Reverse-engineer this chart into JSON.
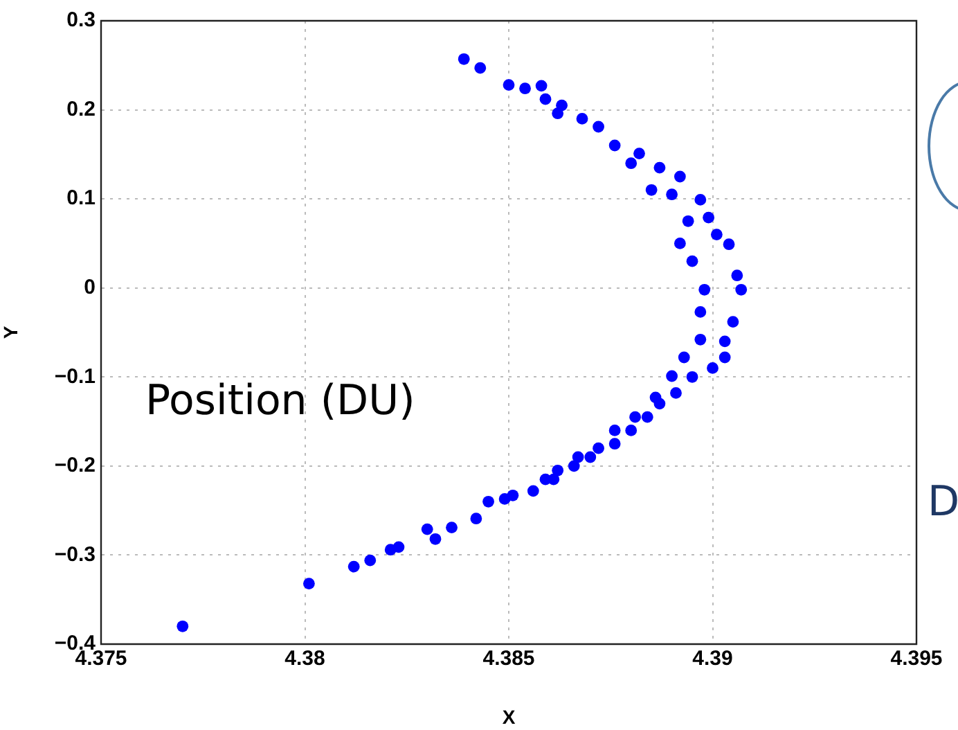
{
  "chart_data": {
    "type": "scatter",
    "xlabel": "X",
    "ylabel": "Y",
    "xlim": [
      4.375,
      4.395
    ],
    "xticks": [
      4.375,
      4.38,
      4.385,
      4.39,
      4.395
    ],
    "ylim": [
      -0.4,
      0.3
    ],
    "yticks": [
      -0.4,
      -0.3,
      -0.2,
      -0.1,
      0,
      0.1,
      0.2,
      0.3
    ],
    "grid": true,
    "marker": "circle",
    "annotations": [
      "Position (DU)",
      "D"
    ],
    "series": [
      {
        "color": "#0000ff",
        "x": [
          4.377,
          4.3801,
          4.3812,
          4.3816,
          4.3821,
          4.3823,
          4.383,
          4.3832,
          4.3836,
          4.3842,
          4.3845,
          4.3849,
          4.3851,
          4.3856,
          4.3859,
          4.3862,
          4.3867,
          4.3872,
          4.3876,
          4.3881,
          4.3886,
          4.389,
          4.3893,
          4.3897,
          4.3861,
          4.3866,
          4.387,
          4.3876,
          4.388,
          4.3884,
          4.3887,
          4.3891,
          4.3895,
          4.39,
          4.3903,
          4.3903,
          4.3905,
          4.3897,
          4.3898,
          4.3907,
          4.3906,
          4.3904,
          4.3899,
          4.3894,
          4.3897,
          4.389,
          4.3892,
          4.3887,
          4.3882,
          4.3876,
          4.3872,
          4.3868,
          4.3862,
          4.3863,
          4.3859,
          4.3858,
          4.3854,
          4.385,
          4.3843,
          4.3839,
          4.3895,
          4.3901,
          4.3892,
          4.3885,
          4.388
        ],
        "values": [
          -0.38,
          -0.332,
          -0.313,
          -0.306,
          -0.294,
          -0.291,
          -0.271,
          -0.282,
          -0.269,
          -0.259,
          -0.24,
          -0.237,
          -0.233,
          -0.228,
          -0.215,
          -0.205,
          -0.19,
          -0.18,
          -0.16,
          -0.145,
          -0.123,
          -0.099,
          -0.078,
          -0.058,
          -0.215,
          -0.2,
          -0.19,
          -0.175,
          -0.16,
          -0.145,
          -0.13,
          -0.118,
          -0.1,
          -0.09,
          -0.06,
          -0.078,
          -0.038,
          -0.027,
          -0.002,
          -0.002,
          0.014,
          0.049,
          0.079,
          0.075,
          0.099,
          0.105,
          0.125,
          0.135,
          0.151,
          0.16,
          0.181,
          0.19,
          0.196,
          0.205,
          0.212,
          0.227,
          0.224,
          0.228,
          0.247,
          0.257,
          0.03,
          0.06,
          0.05,
          0.11,
          0.14
        ]
      }
    ]
  }
}
